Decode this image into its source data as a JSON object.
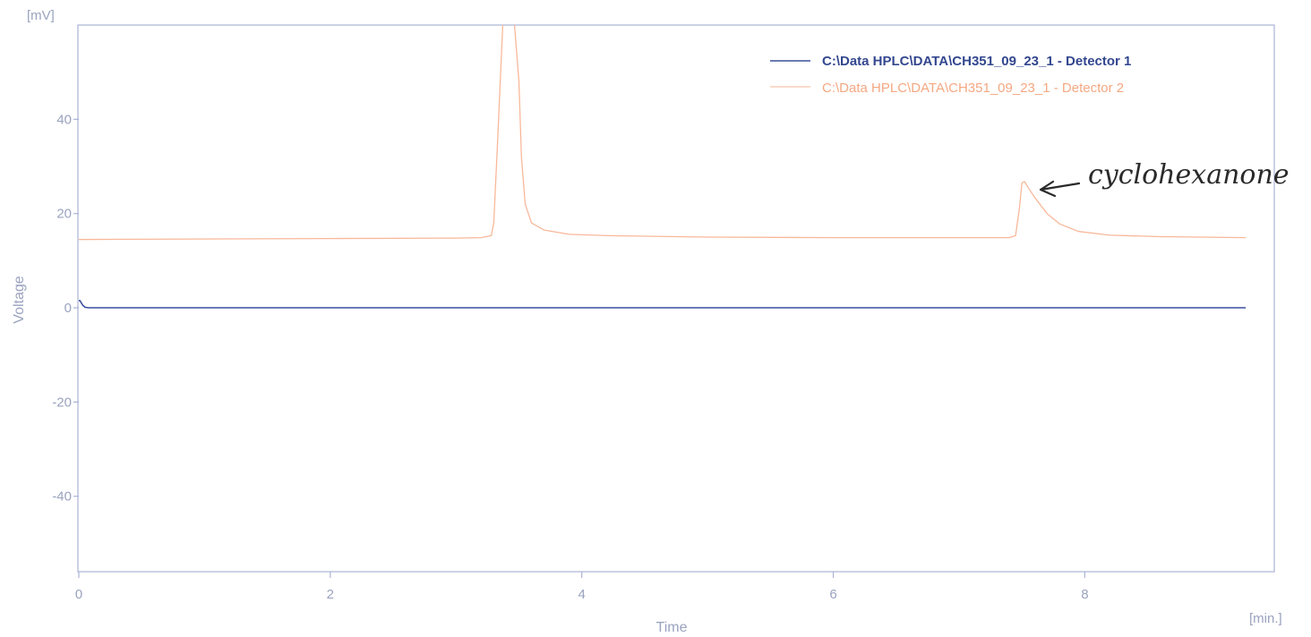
{
  "chart_data": {
    "type": "line",
    "ylabel": "Voltage",
    "xlabel": "Time",
    "y_unit": "[mV]",
    "x_unit": "[min.]",
    "xlim": [
      0,
      9.5
    ],
    "ylim": [
      -56,
      60
    ],
    "x_ticks": [
      0,
      2,
      4,
      6,
      8
    ],
    "y_ticks": [
      40,
      20,
      0,
      -20,
      -40
    ],
    "x_tick_labels": [
      "0",
      "2",
      "4",
      "6",
      "8"
    ],
    "y_tick_labels": [
      "40",
      "20",
      "0",
      "-20",
      "-40"
    ],
    "grid": false,
    "legend_position": "top-right",
    "series": [
      {
        "name": "C:\\Data HPLC\\DATA\\CH351_09_23_1 - Detector 1",
        "color": "#3a4f9e",
        "x": [
          0,
          0.01,
          0.03,
          0.05,
          0.08,
          1,
          2,
          3,
          4,
          5,
          6,
          7,
          8,
          9.28
        ],
        "y": [
          1.5,
          1.5,
          0.6,
          0.1,
          0,
          0,
          0,
          0,
          0,
          0,
          0,
          0,
          0,
          0
        ]
      },
      {
        "name": "C:\\Data HPLC\\DATA\\CH351_09_23_1 - Detector 2",
        "color": "#f8b89a",
        "x": [
          0,
          1,
          2,
          3,
          3.2,
          3.28,
          3.3,
          3.33,
          3.38,
          3.45,
          3.5,
          3.52,
          3.55,
          3.6,
          3.7,
          3.9,
          4.2,
          5,
          6,
          7,
          7.4,
          7.45,
          7.48,
          7.5,
          7.52,
          7.55,
          7.6,
          7.7,
          7.8,
          7.95,
          8.2,
          8.6,
          9.28
        ],
        "y": [
          14.5,
          14.6,
          14.7,
          14.8,
          14.9,
          15.3,
          18,
          35,
          65,
          65,
          48,
          32,
          22,
          18,
          16.5,
          15.6,
          15.3,
          15,
          14.9,
          14.9,
          14.9,
          15.3,
          21,
          26.5,
          26.8,
          25.5,
          23.5,
          20,
          17.8,
          16.2,
          15.4,
          15.1,
          14.9
        ]
      }
    ],
    "annotations": [
      {
        "text": "cyclohexanone",
        "target_x": 7.55,
        "target_y": 26.5
      }
    ]
  }
}
